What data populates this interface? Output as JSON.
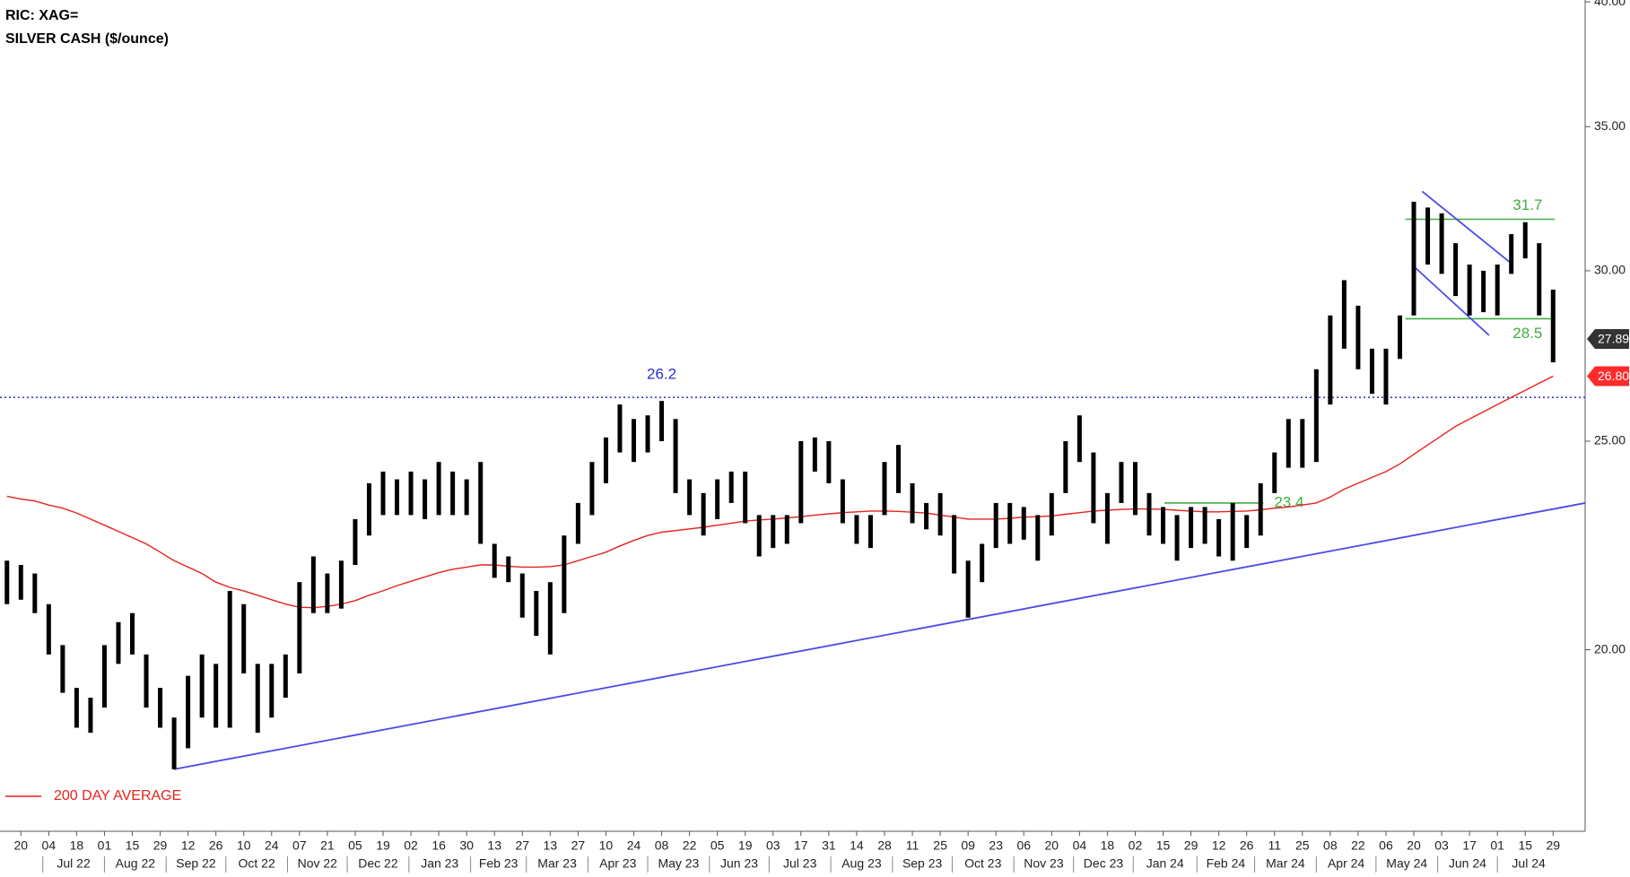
{
  "chart_data": {
    "type": "candlestick",
    "title": "RIC: XAG=",
    "subtitle": "SILVER CASH ($/ounce)",
    "color": "#000000",
    "log_scale": true,
    "xlim": [
      -0.5,
      113.3
    ],
    "ylim": [
      16.47,
      40.08
    ],
    "yticks": [
      {
        "value": 20,
        "label": "20.00"
      },
      {
        "value": 25,
        "label": "25.00"
      },
      {
        "value": 30,
        "label": "30.00"
      },
      {
        "value": 35,
        "label": "35.00"
      },
      {
        "value": 40,
        "label": "40.00"
      }
    ],
    "xticks": [
      {
        "value": 1,
        "label": "20"
      },
      {
        "value": 3,
        "label": "04"
      },
      {
        "value": 5,
        "label": "18"
      },
      {
        "value": 7,
        "label": "01"
      },
      {
        "value": 9,
        "label": "15"
      },
      {
        "value": 11,
        "label": "29"
      },
      {
        "value": 13,
        "label": "12"
      },
      {
        "value": 15,
        "label": "26"
      },
      {
        "value": 17,
        "label": "10"
      },
      {
        "value": 19,
        "label": "24"
      },
      {
        "value": 21,
        "label": "07"
      },
      {
        "value": 23,
        "label": "21"
      },
      {
        "value": 25,
        "label": "05"
      },
      {
        "value": 27,
        "label": "19"
      },
      {
        "value": 29,
        "label": "02"
      },
      {
        "value": 31,
        "label": "16"
      },
      {
        "value": 33,
        "label": "30"
      },
      {
        "value": 35,
        "label": "13"
      },
      {
        "value": 37,
        "label": "27"
      },
      {
        "value": 39,
        "label": "13"
      },
      {
        "value": 41,
        "label": "27"
      },
      {
        "value": 43,
        "label": "10"
      },
      {
        "value": 45,
        "label": "24"
      },
      {
        "value": 47,
        "label": "08"
      },
      {
        "value": 49,
        "label": "22"
      },
      {
        "value": 51,
        "label": "05"
      },
      {
        "value": 53,
        "label": "19"
      },
      {
        "value": 55,
        "label": "03"
      },
      {
        "value": 57,
        "label": "17"
      },
      {
        "value": 59,
        "label": "31"
      },
      {
        "value": 61,
        "label": "14"
      },
      {
        "value": 63,
        "label": "28"
      },
      {
        "value": 65,
        "label": "11"
      },
      {
        "value": 67,
        "label": "25"
      },
      {
        "value": 69,
        "label": "09"
      },
      {
        "value": 71,
        "label": "23"
      },
      {
        "value": 73,
        "label": "06"
      },
      {
        "value": 75,
        "label": "20"
      },
      {
        "value": 77,
        "label": "04"
      },
      {
        "value": 79,
        "label": "18"
      },
      {
        "value": 81,
        "label": "02"
      },
      {
        "value": 83,
        "label": "15"
      },
      {
        "value": 85,
        "label": "29"
      },
      {
        "value": 87,
        "label": "12"
      },
      {
        "value": 89,
        "label": "26"
      },
      {
        "value": 91,
        "label": "11"
      },
      {
        "value": 93,
        "label": "25"
      },
      {
        "value": 95,
        "label": "08"
      },
      {
        "value": 97,
        "label": "22"
      },
      {
        "value": 99,
        "label": "06"
      },
      {
        "value": 101,
        "label": "20"
      },
      {
        "value": 103,
        "label": "03"
      },
      {
        "value": 105,
        "label": "17"
      },
      {
        "value": 107,
        "label": "01"
      },
      {
        "value": 109,
        "label": "15"
      },
      {
        "value": 111,
        "label": "29"
      }
    ],
    "months": [
      "Jul 22",
      "Aug 22",
      "Sep 22",
      "Oct 22",
      "Nov 22",
      "Dec 22",
      "Jan 23",
      "Feb 23",
      "Mar 23",
      "Apr 23",
      "May 23",
      "Jun 23",
      "Jul 23",
      "Aug 23",
      "Sep 23",
      "Oct 23",
      "Nov 23",
      "Dec 23",
      "Jan 24",
      "Feb 24",
      "Mar 24",
      "Apr 24",
      "May 24",
      "Jun 24",
      "Jul 24"
    ],
    "high": [
      22.0,
      21.9,
      21.7,
      21.0,
      20.1,
      19.2,
      19.0,
      20.1,
      20.6,
      20.8,
      19.9,
      19.2,
      18.6,
      19.45,
      19.9,
      19.7,
      21.3,
      21.0,
      19.7,
      19.7,
      19.9,
      21.5,
      22.1,
      21.7,
      22.0,
      23.0,
      23.9,
      24.2,
      24.0,
      24.2,
      24.0,
      24.45,
      24.2,
      24.0,
      24.45,
      22.4,
      22.1,
      21.7,
      21.3,
      21.5,
      22.6,
      23.4,
      24.45,
      25.1,
      26.0,
      25.6,
      25.7,
      26.1,
      25.6,
      24.0,
      23.65,
      24.0,
      24.2,
      24.2,
      23.1,
      23.1,
      23.1,
      25.0,
      25.1,
      25.0,
      24.0,
      23.1,
      23.1,
      24.45,
      24.9,
      23.9,
      23.4,
      23.65,
      23.1,
      22.0,
      22.4,
      23.4,
      23.4,
      23.3,
      23.1,
      23.65,
      25.0,
      25.7,
      24.7,
      23.65,
      24.45,
      24.45,
      23.65,
      23.3,
      23.1,
      23.3,
      23.3,
      23.0,
      23.4,
      23.1,
      23.9,
      24.7,
      25.6,
      25.6,
      27.0,
      28.6,
      29.7,
      28.9,
      27.6,
      27.6,
      28.6,
      32.3,
      32.1,
      31.9,
      30.9,
      30.2,
      30.0,
      30.2,
      31.2,
      31.6,
      30.9,
      29.4
    ],
    "low": [
      21.0,
      21.1,
      20.8,
      19.9,
      19.1,
      18.4,
      18.3,
      18.8,
      19.7,
      19.9,
      18.8,
      18.4,
      17.6,
      18.0,
      18.6,
      18.4,
      18.4,
      19.5,
      18.3,
      18.6,
      19.0,
      19.5,
      20.8,
      20.8,
      20.9,
      21.9,
      22.6,
      23.1,
      23.1,
      23.1,
      23.0,
      23.1,
      23.1,
      23.1,
      22.4,
      21.6,
      21.5,
      20.7,
      20.3,
      19.9,
      20.8,
      22.4,
      23.1,
      23.9,
      24.7,
      24.45,
      24.7,
      25.0,
      23.65,
      23.1,
      22.6,
      23.0,
      23.4,
      22.9,
      22.1,
      22.3,
      22.4,
      22.9,
      24.2,
      23.9,
      22.9,
      22.4,
      22.3,
      23.1,
      23.65,
      22.9,
      22.75,
      22.6,
      21.7,
      20.7,
      21.5,
      22.3,
      22.4,
      22.5,
      22.0,
      22.6,
      23.65,
      24.45,
      22.9,
      22.4,
      23.4,
      23.1,
      22.6,
      22.4,
      22.0,
      22.3,
      22.4,
      22.1,
      22.0,
      22.3,
      22.6,
      23.65,
      24.3,
      24.3,
      24.45,
      26.0,
      27.6,
      27.0,
      26.3,
      26.0,
      27.3,
      28.6,
      30.2,
      29.9,
      29.2,
      28.6,
      28.7,
      28.6,
      29.9,
      30.4,
      28.6,
      27.2
    ],
    "series": [
      {
        "name": "200 DAY AVERAGE",
        "color": "#e8221c",
        "values": [
          23.57,
          23.5,
          23.45,
          23.35,
          23.27,
          23.15,
          23.0,
          22.85,
          22.7,
          22.55,
          22.4,
          22.2,
          22.0,
          21.85,
          21.7,
          21.5,
          21.38,
          21.3,
          21.2,
          21.1,
          21.0,
          20.93,
          20.92,
          20.95,
          21.0,
          21.08,
          21.2,
          21.3,
          21.42,
          21.52,
          21.62,
          21.72,
          21.8,
          21.85,
          21.9,
          21.9,
          21.87,
          21.85,
          21.85,
          21.86,
          21.9,
          22.0,
          22.1,
          22.2,
          22.35,
          22.48,
          22.6,
          22.68,
          22.72,
          22.76,
          22.8,
          22.85,
          22.9,
          22.95,
          22.98,
          23.0,
          23.03,
          23.06,
          23.1,
          23.13,
          23.16,
          23.18,
          23.2,
          23.2,
          23.19,
          23.17,
          23.15,
          23.1,
          23.05,
          23.0,
          23.0,
          23.0,
          23.02,
          23.05,
          23.06,
          23.08,
          23.12,
          23.16,
          23.2,
          23.22,
          23.24,
          23.25,
          23.25,
          23.24,
          23.22,
          23.2,
          23.18,
          23.18,
          23.19,
          23.2,
          23.23,
          23.27,
          23.3,
          23.35,
          23.4,
          23.55,
          23.75,
          23.9,
          24.05,
          24.2,
          24.4,
          24.65,
          24.9,
          25.15,
          25.4,
          25.6,
          25.8,
          26.0,
          26.2,
          26.4,
          26.6,
          26.8
        ]
      }
    ],
    "levels": [
      {
        "value": 26.2,
        "color": "#2b2bd6",
        "dashed": true,
        "label_pos": "above"
      },
      {
        "value": 31.7,
        "x": [
          100.4,
          111.1
        ],
        "color": "#3fae3f",
        "label_pos": "above"
      },
      {
        "value": 28.5,
        "x": [
          100.4,
          111.1
        ],
        "color": "#3fae3f",
        "label_pos": "below"
      },
      {
        "value": 23.4,
        "x": [
          83.1,
          90.2
        ],
        "color": "#3fae3f",
        "label_pos": "right"
      }
    ],
    "trendlines": [
      {
        "x": [
          12.0,
          113.3
        ],
        "y": [
          17.6,
          23.4
        ],
        "color": "#4a4ae8"
      },
      {
        "x": [
          101.6,
          108.1
        ],
        "y": [
          32.66,
          30.2
        ],
        "color": "#4a4ae8"
      },
      {
        "x": [
          101.1,
          106.4
        ],
        "y": [
          30.1,
          28.0
        ],
        "color": "#4a4ae8"
      }
    ],
    "price_tags": [
      {
        "value": 27.89,
        "color": "#333333"
      },
      {
        "value": 26.8,
        "label": "26.80",
        "color": "#ff2a2a"
      }
    ]
  }
}
